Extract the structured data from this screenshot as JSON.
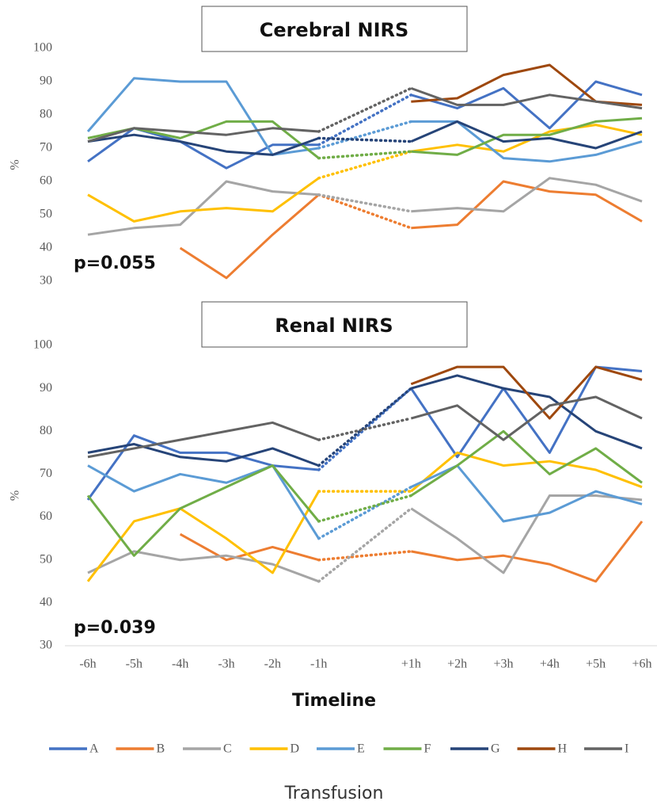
{
  "chart_data": [
    {
      "type": "line",
      "title": "Cerebral NIRS",
      "y_label": "%",
      "annotation": "p=0.055",
      "ylim": [
        30,
        100
      ],
      "yticks": [
        30,
        40,
        50,
        60,
        70,
        80,
        90,
        100
      ],
      "series": [
        {
          "name": "A",
          "color": "#4472c4",
          "values": [
            66,
            76,
            72,
            64,
            71,
            71,
            null,
            86,
            82,
            88,
            76,
            90,
            86
          ]
        },
        {
          "name": "B",
          "color": "#ed7d31",
          "values": [
            null,
            null,
            40,
            31,
            44,
            56,
            null,
            46,
            47,
            60,
            57,
            56,
            48
          ]
        },
        {
          "name": "C",
          "color": "#a5a5a5",
          "values": [
            44,
            46,
            47,
            60,
            57,
            56,
            null,
            51,
            52,
            51,
            61,
            59,
            54
          ]
        },
        {
          "name": "D",
          "color": "#ffc000",
          "values": [
            56,
            48,
            51,
            52,
            51,
            61,
            null,
            69,
            71,
            69,
            75,
            77,
            74
          ]
        },
        {
          "name": "E",
          "color": "#5b9bd5",
          "values": [
            75,
            91,
            90,
            90,
            68,
            70,
            null,
            78,
            78,
            67,
            66,
            68,
            72
          ]
        },
        {
          "name": "F",
          "color": "#70ad47",
          "values": [
            73,
            76,
            73,
            78,
            78,
            67,
            null,
            69,
            68,
            74,
            74,
            78,
            79
          ]
        },
        {
          "name": "G",
          "color": "#264478",
          "values": [
            72,
            74,
            72,
            69,
            68,
            73,
            null,
            72,
            78,
            72,
            73,
            70,
            75
          ]
        },
        {
          "name": "H",
          "color": "#9e480e",
          "values": [
            null,
            null,
            null,
            null,
            null,
            null,
            null,
            84,
            85,
            92,
            95,
            84,
            83
          ]
        },
        {
          "name": "I",
          "color": "#636363",
          "values": [
            72,
            76,
            75,
            74,
            76,
            75,
            null,
            88,
            83,
            83,
            86,
            84,
            82
          ]
        }
      ]
    },
    {
      "type": "line",
      "title": "Renal NIRS",
      "y_label": "%",
      "annotation": "p=0.039",
      "x_label": "Timeline",
      "categories": [
        "-6h",
        "-5h",
        "-4h",
        "-3h",
        "-2h",
        "-1h",
        null,
        "+1h",
        "+2h",
        "+3h",
        "+4h",
        "+5h",
        "+6h"
      ],
      "ylim": [
        30,
        100
      ],
      "yticks": [
        30,
        40,
        50,
        60,
        70,
        80,
        90,
        100
      ],
      "series": [
        {
          "name": "A",
          "color": "#4472c4",
          "values": [
            64,
            79,
            75,
            75,
            72,
            71,
            null,
            90,
            74,
            90,
            75,
            95,
            94
          ]
        },
        {
          "name": "B",
          "color": "#ed7d31",
          "values": [
            null,
            null,
            56,
            50,
            53,
            50,
            null,
            52,
            50,
            51,
            49,
            45,
            59
          ]
        },
        {
          "name": "C",
          "color": "#a5a5a5",
          "values": [
            47,
            52,
            50,
            51,
            49,
            45,
            null,
            62,
            55,
            47,
            65,
            65,
            64
          ]
        },
        {
          "name": "D",
          "color": "#ffc000",
          "values": [
            45,
            59,
            62,
            55,
            47,
            66,
            null,
            66,
            75,
            72,
            73,
            71,
            67
          ]
        },
        {
          "name": "E",
          "color": "#5b9bd5",
          "values": [
            72,
            66,
            70,
            68,
            72,
            55,
            null,
            67,
            72,
            59,
            61,
            66,
            63
          ]
        },
        {
          "name": "F",
          "color": "#70ad47",
          "values": [
            65,
            51,
            62,
            67,
            72,
            59,
            null,
            65,
            72,
            80,
            70,
            76,
            68
          ]
        },
        {
          "name": "G",
          "color": "#264478",
          "values": [
            75,
            77,
            74,
            73,
            76,
            72,
            null,
            90,
            93,
            90,
            88,
            80,
            76
          ]
        },
        {
          "name": "H",
          "color": "#9e480e",
          "values": [
            null,
            null,
            null,
            null,
            null,
            null,
            null,
            91,
            95,
            95,
            83,
            95,
            92
          ]
        },
        {
          "name": "I",
          "color": "#636363",
          "values": [
            74,
            76,
            78,
            80,
            82,
            78,
            null,
            83,
            86,
            78,
            86,
            88,
            83
          ]
        }
      ]
    }
  ],
  "caption": "Transfusion"
}
